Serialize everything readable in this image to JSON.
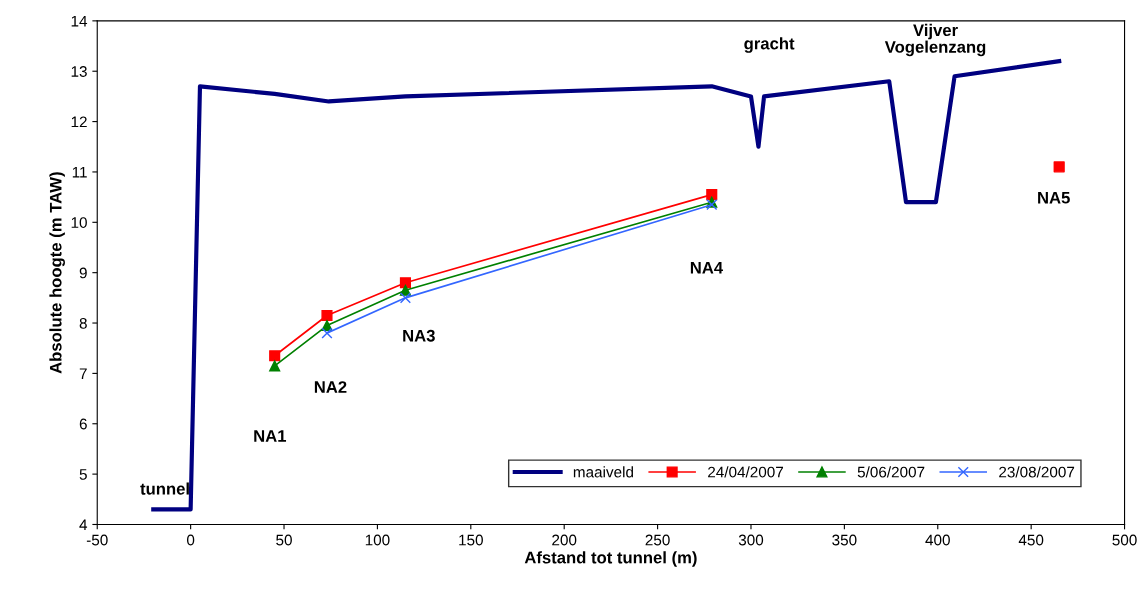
{
  "chart_data": {
    "type": "line",
    "xlabel": "Afstand tot tunnel (m)",
    "ylabel": "Absolute hoogte (m TAW)",
    "xlim": [
      -50,
      500
    ],
    "xticks": [
      -50,
      0,
      50,
      100,
      150,
      200,
      250,
      300,
      350,
      400,
      450,
      500
    ],
    "ylim": [
      4,
      14
    ],
    "yticks": [
      4,
      5,
      6,
      7,
      8,
      9,
      10,
      11,
      12,
      13,
      14
    ],
    "grid": false,
    "legend": "bottom right",
    "series": [
      {
        "name": "maaiveld",
        "color": "#000080",
        "marker": "none",
        "x": [
          -20,
          0,
          5,
          45,
          74,
          115,
          279,
          300,
          304,
          307,
          374,
          383,
          399,
          409,
          465
        ],
        "values": [
          4.3,
          4.3,
          12.7,
          12.55,
          12.4,
          12.5,
          12.7,
          12.5,
          11.5,
          12.5,
          12.8,
          10.4,
          10.4,
          12.9,
          13.2
        ]
      },
      {
        "name": "24/04/2007",
        "color": "#ff0000",
        "marker": "square",
        "x": [
          45,
          73,
          115,
          279
        ],
        "values": [
          7.35,
          8.15,
          8.8,
          10.55
        ]
      },
      {
        "name": "5/06/2007",
        "color": "#008000",
        "marker": "triangle",
        "x": [
          45,
          73,
          115,
          279
        ],
        "values": [
          7.15,
          7.95,
          8.65,
          10.4
        ]
      },
      {
        "name": "23/08/2007",
        "color": "#3366ff",
        "marker": "cross",
        "x": [
          73,
          115,
          279
        ],
        "values": [
          7.8,
          8.5,
          10.35
        ]
      },
      {
        "type": "scatter",
        "color": "#ff0000",
        "marker": "square",
        "x": [
          465
        ],
        "values": [
          11.1
        ]
      }
    ],
    "annotations": [
      "tunnel",
      "NA1",
      "NA2",
      "NA3",
      "NA4",
      "NA5",
      "gracht",
      "Vijver\nVogelenzang"
    ]
  }
}
